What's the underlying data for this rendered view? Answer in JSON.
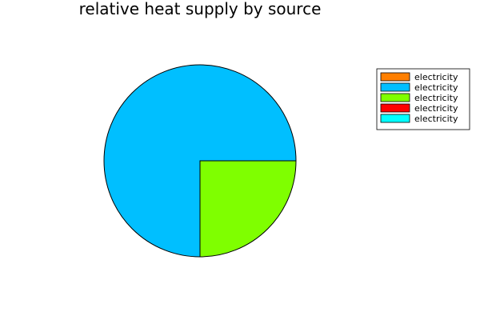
{
  "chart_data": {
    "type": "pie",
    "title": "relative heat supply by source",
    "start_angle_deg": 0,
    "direction": "counterclockwise",
    "slices": [
      {
        "label": "electricity",
        "value": 0,
        "color": "#FF7F00"
      },
      {
        "label": "electricity",
        "value": 0.75,
        "color": "#00BFFF"
      },
      {
        "label": "electricity",
        "value": 0.25,
        "color": "#7FFF00"
      },
      {
        "label": "electricity",
        "value": 0,
        "color": "#FF0000"
      },
      {
        "label": "electricity",
        "value": 0,
        "color": "#00FFFF"
      }
    ],
    "legend": {
      "position": "top-right",
      "entries": [
        "electricity",
        "electricity",
        "electricity",
        "electricity",
        "electricity"
      ]
    }
  }
}
